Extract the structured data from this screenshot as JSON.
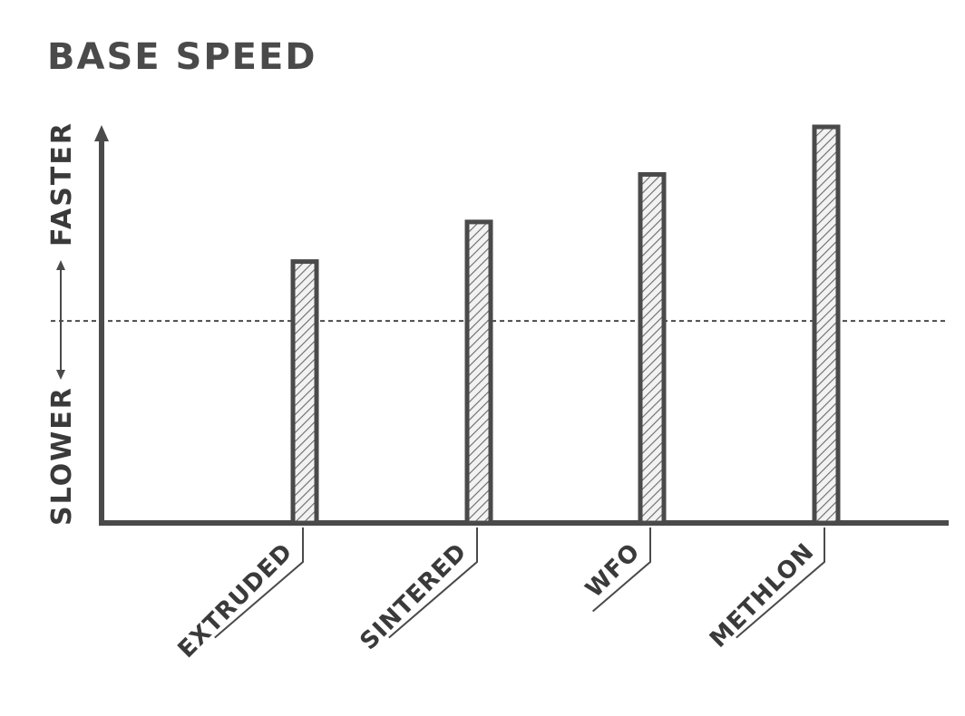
{
  "chart_data": {
    "type": "bar",
    "title": "BASE SPEED",
    "categories": [
      "EXTRUDED",
      "SINTERED",
      "WFO",
      "METHLON"
    ],
    "values": [
      66,
      76,
      88,
      100
    ],
    "ylim": [
      0,
      100
    ],
    "baseline": 51,
    "y_top_label": "FASTER",
    "y_bottom_label": "SLOWER",
    "y_ticks": false,
    "grid": false,
    "legend": "none",
    "colors": {
      "ink": "#4a4a4a",
      "hatch": "#6a6a6a",
      "fill": "#f2f2f2"
    }
  }
}
